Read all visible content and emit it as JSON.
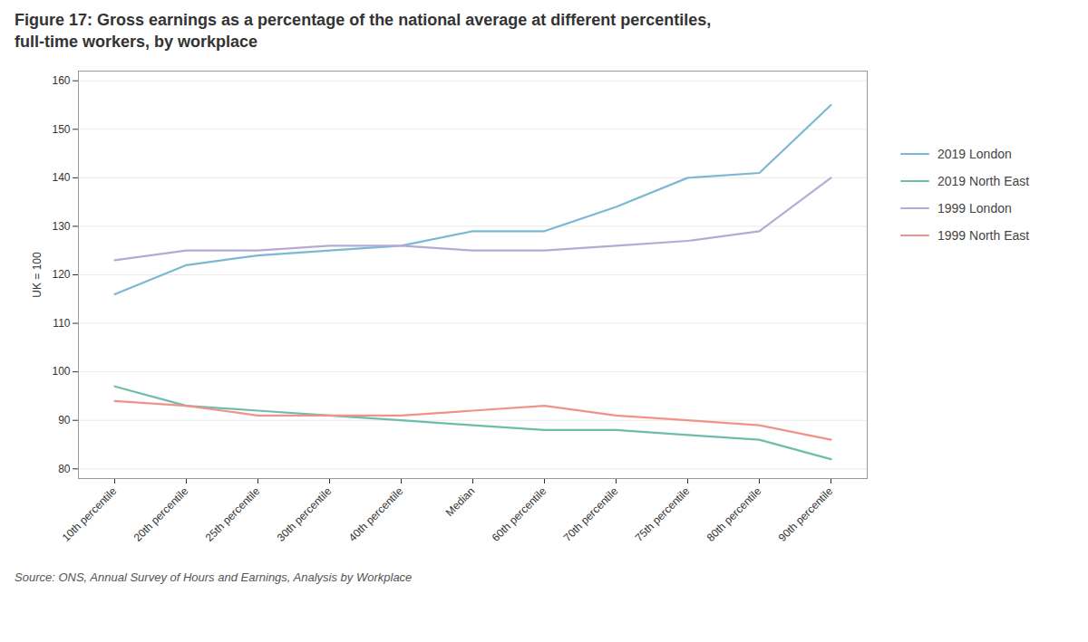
{
  "chart_data": {
    "type": "line",
    "title": "Figure 17: Gross earnings as a percentage of the national average at different percentiles,",
    "subtitle": "full-time workers, by workplace",
    "source": "Source: ONS, Annual Survey of Hours and Earnings, Analysis by Workplace",
    "y_label": "UK = 100",
    "categories": [
      "10th percentile",
      "20th percentile",
      "25th percentile",
      "30th percentile",
      "40th percentile",
      "Median",
      "60th percentile",
      "70th percentile",
      "75th percentile",
      "80th percentile",
      "90th percentile"
    ],
    "series": [
      {
        "name": "2019 London",
        "color": "#7bb8d4",
        "values": [
          116,
          122,
          124,
          125,
          126,
          129,
          129,
          134,
          140,
          141,
          155
        ]
      },
      {
        "name": "2019 North East",
        "color": "#6dbdad",
        "values": [
          97,
          93,
          92,
          91,
          90,
          89,
          88,
          88,
          87,
          86,
          82
        ]
      },
      {
        "name": "1999 London",
        "color": "#b8a9d4",
        "values": [
          123,
          125,
          125,
          126,
          126,
          125,
          125,
          126,
          127,
          129,
          140
        ]
      },
      {
        "name": "1999 North East",
        "color": "#f0928a",
        "values": [
          94,
          93,
          91,
          91,
          91,
          92,
          93,
          91,
          90,
          89,
          86
        ]
      }
    ],
    "ylim": [
      78,
      162
    ],
    "yticks": [
      80,
      90,
      100,
      110,
      120,
      130,
      140,
      150,
      160
    ],
    "grid": true,
    "legend": "right"
  }
}
